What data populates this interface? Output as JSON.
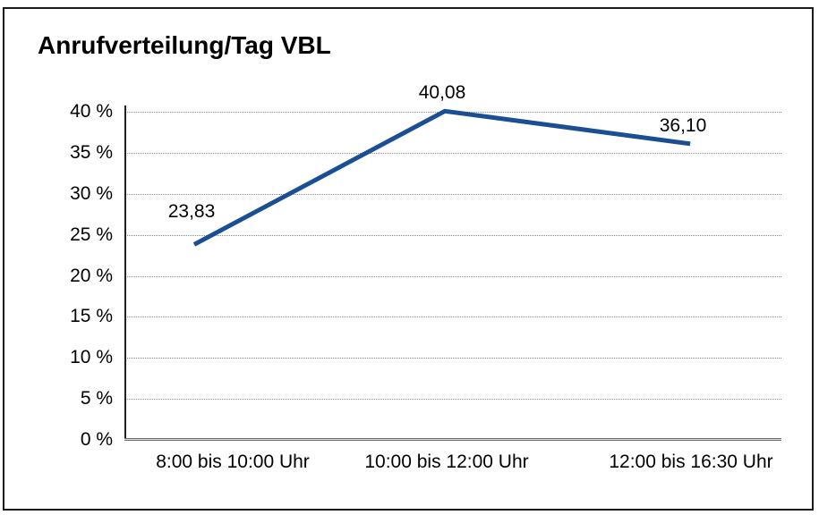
{
  "window": {
    "title": "Anrufverteilung/Tag VBL"
  },
  "chart_data": {
    "type": "line",
    "title": "Anrufverteilung/Tag VBL",
    "categories": [
      "8:00 bis 10:00 Uhr",
      "10:00 bis 12:00 Uhr",
      "12:00 bis 16:30 Uhr"
    ],
    "series": [
      {
        "values": [
          23.83,
          40.08,
          36.1
        ],
        "data_labels": [
          "23,83",
          "40,08",
          "36,10"
        ],
        "color": "#1a4f94"
      }
    ],
    "xlabel": "",
    "ylabel": "",
    "ylim": [
      0,
      40
    ],
    "ytick_step": 5,
    "ytick_labels": [
      "0 %",
      "5 %",
      "10 %",
      "15 %",
      "20 %",
      "25 %",
      "30 %",
      "35 %",
      "40 %"
    ],
    "grid": "horizontal-dotted",
    "legend": "none"
  },
  "colors": {
    "line": "#1a4f94",
    "grid": "#8c8c8c",
    "y_axis": "#1f1f1f",
    "x_axis": "#6e6e6e",
    "frame_border": "#1a1a1a",
    "background": "#ffffff",
    "text": "#000000"
  }
}
